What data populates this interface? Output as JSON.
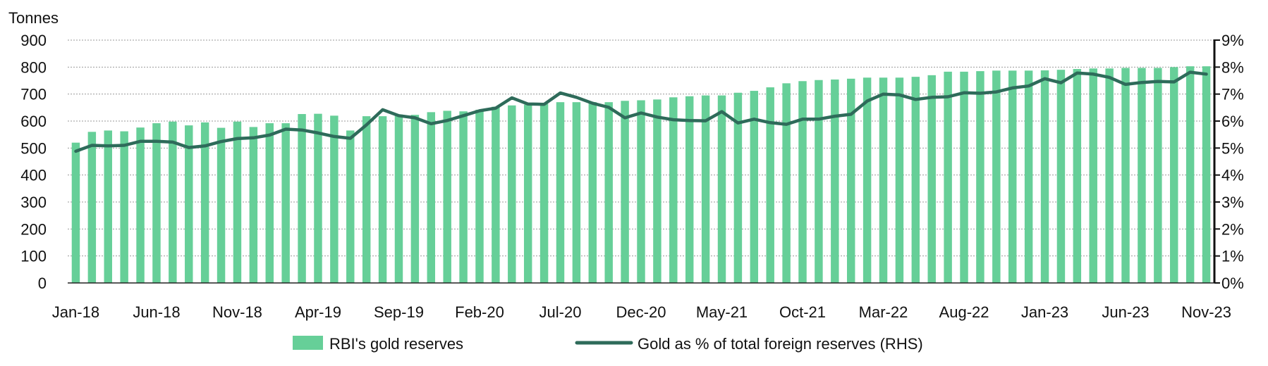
{
  "chart_data": {
    "type": "bar+line",
    "unit_label": "Tonnes",
    "title": "",
    "categories": [
      "Jan-18",
      "Feb-18",
      "Mar-18",
      "Apr-18",
      "May-18",
      "Jun-18",
      "Jul-18",
      "Aug-18",
      "Sep-18",
      "Oct-18",
      "Nov-18",
      "Dec-18",
      "Jan-19",
      "Feb-19",
      "Mar-19",
      "Apr-19",
      "May-19",
      "Jun-19",
      "Jul-19",
      "Aug-19",
      "Sep-19",
      "Oct-19",
      "Nov-19",
      "Dec-19",
      "Jan-20",
      "Feb-20",
      "Mar-20",
      "Apr-20",
      "May-20",
      "Jun-20",
      "Jul-20",
      "Aug-20",
      "Sep-20",
      "Oct-20",
      "Nov-20",
      "Dec-20",
      "Jan-21",
      "Feb-21",
      "Mar-21",
      "Apr-21",
      "May-21",
      "Jun-21",
      "Jul-21",
      "Aug-21",
      "Sep-21",
      "Oct-21",
      "Nov-21",
      "Dec-21",
      "Jan-22",
      "Feb-22",
      "Mar-22",
      "Apr-22",
      "May-22",
      "Jun-22",
      "Jul-22",
      "Aug-22",
      "Sep-22",
      "Oct-22",
      "Nov-22",
      "Dec-22",
      "Jan-23",
      "Feb-23",
      "Mar-23",
      "Apr-23",
      "May-23",
      "Jun-23",
      "Jul-23",
      "Aug-23",
      "Sep-23",
      "Oct-23",
      "Nov-23"
    ],
    "x_tick_labels": [
      "Jan-18",
      "Jun-18",
      "Nov-18",
      "Apr-19",
      "Sep-19",
      "Feb-20",
      "Jul-20",
      "Dec-20",
      "May-21",
      "Oct-21",
      "Mar-22",
      "Aug-22",
      "Jan-23",
      "Jun-23",
      "Nov-23"
    ],
    "x_tick_every": 5,
    "y_left": {
      "min": 0,
      "max": 900,
      "step": 100,
      "ticks": [
        "0",
        "100",
        "200",
        "300",
        "400",
        "500",
        "600",
        "700",
        "800",
        "900"
      ]
    },
    "y_right": {
      "min": 0,
      "max": 9,
      "step": 1,
      "ticks": [
        "0%",
        "1%",
        "2%",
        "3%",
        "4%",
        "5%",
        "6%",
        "7%",
        "8%",
        "9%"
      ]
    },
    "grid": "horizontal-dashed",
    "legend_position": "bottom",
    "series": [
      {
        "name": "RBI's gold reserves",
        "kind": "bar",
        "axis": "left",
        "color": "#66CF98",
        "values": [
          520,
          560,
          565,
          562,
          576,
          592,
          598,
          584,
          595,
          575,
          598,
          578,
          592,
          592,
          626,
          627,
          620,
          565,
          618,
          618,
          624,
          623,
          633,
          638,
          636,
          642,
          653,
          658,
          661,
          664,
          670,
          670,
          670,
          670,
          675,
          677,
          680,
          688,
          692,
          695,
          695,
          705,
          712,
          725,
          740,
          748,
          752,
          754,
          757,
          761,
          761,
          761,
          764,
          770,
          783,
          783,
          785,
          787,
          787,
          787,
          788,
          790,
          793,
          795,
          795,
          797,
          797,
          797,
          800,
          803,
          803
        ]
      },
      {
        "name": "Gold as % of total foreign reserves (RHS)",
        "kind": "line",
        "axis": "right",
        "color": "#2E6B5A",
        "values": [
          4.88,
          5.1,
          5.08,
          5.1,
          5.25,
          5.25,
          5.22,
          5.02,
          5.08,
          5.24,
          5.35,
          5.38,
          5.48,
          5.7,
          5.67,
          5.56,
          5.43,
          5.36,
          5.86,
          6.42,
          6.2,
          6.12,
          5.9,
          6.02,
          6.2,
          6.38,
          6.48,
          6.86,
          6.63,
          6.62,
          7.04,
          6.88,
          6.66,
          6.51,
          6.12,
          6.3,
          6.15,
          6.05,
          6.02,
          6.01,
          6.35,
          5.93,
          6.07,
          5.94,
          5.88,
          6.07,
          6.07,
          6.18,
          6.25,
          6.74,
          7.0,
          6.97,
          6.8,
          6.88,
          6.9,
          7.05,
          7.03,
          7.08,
          7.23,
          7.3,
          7.57,
          7.42,
          7.78,
          7.74,
          7.62,
          7.36,
          7.43,
          7.47,
          7.45,
          7.81,
          7.74
        ]
      }
    ]
  }
}
